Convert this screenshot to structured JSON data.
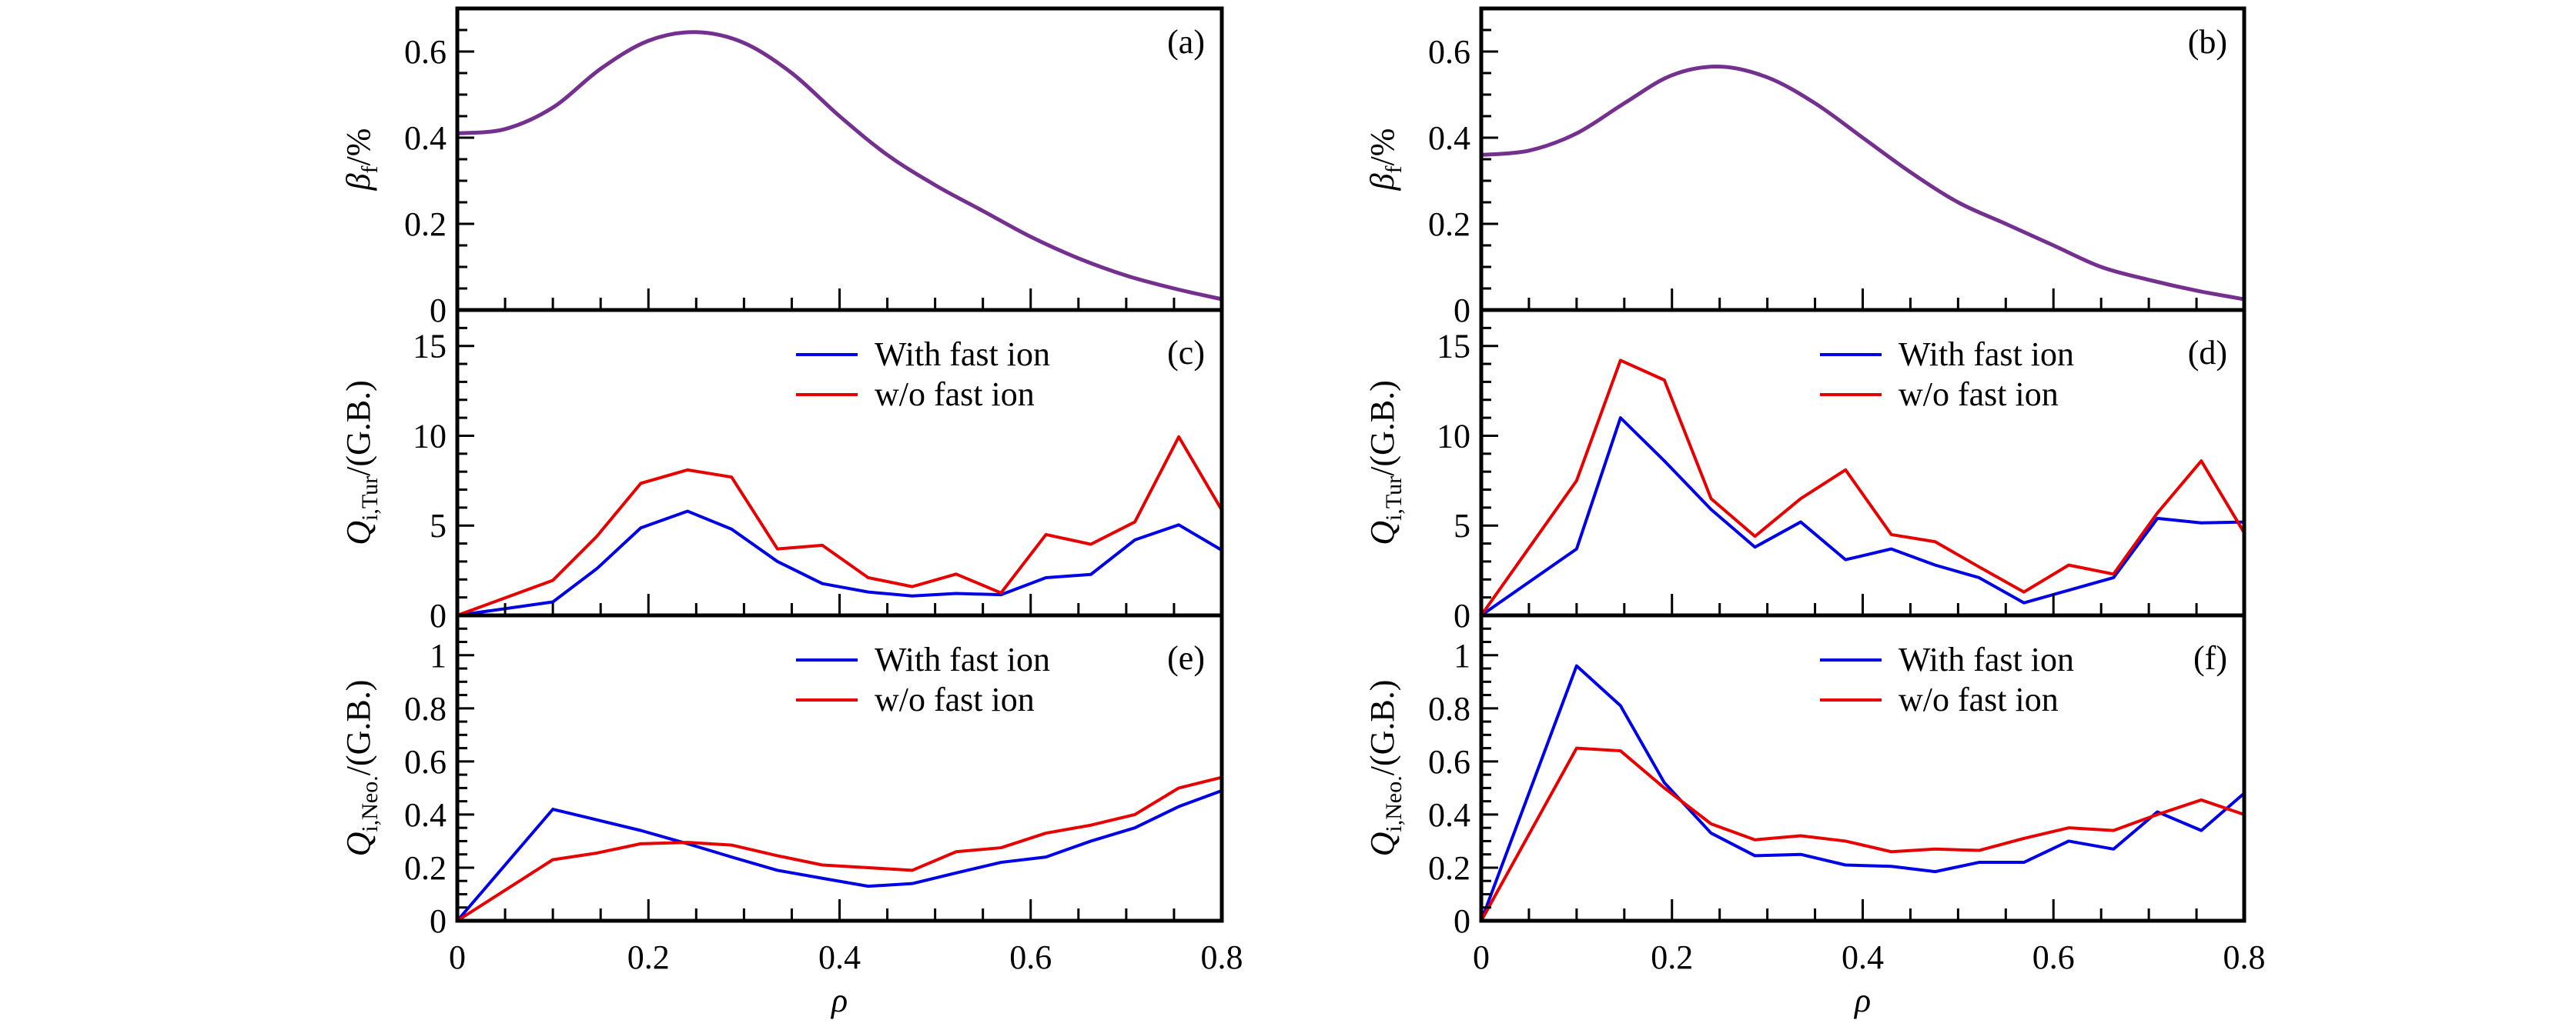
{
  "chart_data": [
    {
      "id": "a",
      "type": "line",
      "panel_label": "(a)",
      "ylabel": {
        "main": "β",
        "sub": "f",
        "tail": "/%"
      },
      "ylim": [
        0,
        0.7
      ],
      "yticks": [
        0,
        0.2,
        0.4,
        0.6
      ],
      "yminor": 0.05,
      "xlim": [
        0,
        0.8
      ],
      "xticks": [
        0,
        0.2,
        0.4,
        0.6,
        0.8
      ],
      "xminor": 0.05,
      "show_xticklabels": false,
      "smooth": true,
      "x": [
        0,
        0.05,
        0.1,
        0.15,
        0.2,
        0.25,
        0.3,
        0.35,
        0.4,
        0.45,
        0.5,
        0.55,
        0.6,
        0.65,
        0.7,
        0.75,
        0.8
      ],
      "series": [
        {
          "name": "",
          "color": "#74308f",
          "values": [
            0.41,
            0.42,
            0.47,
            0.56,
            0.625,
            0.645,
            0.62,
            0.55,
            0.45,
            0.36,
            0.29,
            0.23,
            0.17,
            0.12,
            0.08,
            0.05,
            0.025
          ]
        }
      ],
      "legend": []
    },
    {
      "id": "b",
      "type": "line",
      "panel_label": "(b)",
      "ylabel": {
        "main": "β",
        "sub": "f",
        "tail": "/%"
      },
      "ylim": [
        0,
        0.7
      ],
      "yticks": [
        0,
        0.2,
        0.4,
        0.6
      ],
      "yminor": 0.05,
      "xlim": [
        0,
        0.8
      ],
      "xticks": [
        0,
        0.2,
        0.4,
        0.6,
        0.8
      ],
      "xminor": 0.05,
      "show_xticklabels": false,
      "smooth": true,
      "x": [
        0,
        0.05,
        0.1,
        0.15,
        0.2,
        0.25,
        0.3,
        0.35,
        0.4,
        0.45,
        0.5,
        0.55,
        0.6,
        0.65,
        0.7,
        0.75,
        0.8
      ],
      "series": [
        {
          "name": "",
          "color": "#74308f",
          "values": [
            0.36,
            0.37,
            0.41,
            0.48,
            0.545,
            0.565,
            0.54,
            0.48,
            0.4,
            0.32,
            0.25,
            0.2,
            0.15,
            0.1,
            0.07,
            0.045,
            0.025
          ]
        }
      ],
      "legend": []
    },
    {
      "id": "c",
      "type": "line",
      "panel_label": "(c)",
      "ylabel": {
        "main": "Q",
        "sub": "i,Tur",
        "tail": "/(G.B.)"
      },
      "ylim": [
        0,
        17
      ],
      "yticks": [
        0,
        5,
        10,
        15
      ],
      "yminor": 1,
      "xlim": [
        0,
        0.8
      ],
      "xticks": [
        0,
        0.2,
        0.4,
        0.6,
        0.8
      ],
      "xminor": 0.05,
      "show_xticklabels": false,
      "smooth": false,
      "x": [
        0,
        0.1,
        0.146,
        0.192,
        0.241,
        0.287,
        0.335,
        0.382,
        0.43,
        0.476,
        0.522,
        0.569,
        0.616,
        0.663,
        0.709,
        0.755,
        0.8
      ],
      "series": [
        {
          "name": "With fast ion",
          "color": "#0000e6",
          "values": [
            0,
            0.75,
            2.6,
            4.87,
            5.8,
            4.8,
            3.0,
            1.77,
            1.3,
            1.08,
            1.22,
            1.15,
            2.1,
            2.28,
            4.2,
            5.04,
            3.63
          ]
        },
        {
          "name": "w/o fast ion",
          "color": "#e60000",
          "values": [
            0,
            1.95,
            4.4,
            7.35,
            8.1,
            7.7,
            3.7,
            3.9,
            2.1,
            1.6,
            2.3,
            1.25,
            4.5,
            3.96,
            5.2,
            9.94,
            5.86
          ]
        }
      ],
      "legend": [
        "With fast ion",
        "w/o fast ion"
      ]
    },
    {
      "id": "d",
      "type": "line",
      "panel_label": "(d)",
      "ylabel": {
        "main": "Q",
        "sub": "i,Tur",
        "tail": "/(G.B.)"
      },
      "ylim": [
        0,
        17
      ],
      "yticks": [
        0,
        5,
        10,
        15
      ],
      "yminor": 1,
      "xlim": [
        0,
        0.8
      ],
      "xticks": [
        0,
        0.2,
        0.4,
        0.6,
        0.8
      ],
      "xminor": 0.05,
      "show_xticklabels": false,
      "smooth": false,
      "x": [
        0,
        0.1,
        0.146,
        0.192,
        0.241,
        0.287,
        0.335,
        0.382,
        0.43,
        0.476,
        0.522,
        0.569,
        0.616,
        0.663,
        0.709,
        0.755,
        0.8
      ],
      "series": [
        {
          "name": "With fast ion",
          "color": "#0000e6",
          "values": [
            0,
            3.7,
            11.0,
            8.6,
            5.9,
            3.8,
            5.2,
            3.1,
            3.7,
            2.8,
            2.1,
            0.7,
            1.4,
            2.1,
            5.4,
            5.15,
            5.2
          ]
        },
        {
          "name": "w/o fast ion",
          "color": "#e60000",
          "values": [
            0,
            7.5,
            14.2,
            13.1,
            6.5,
            4.4,
            6.5,
            8.1,
            4.5,
            4.1,
            2.7,
            1.3,
            2.8,
            2.3,
            5.7,
            8.6,
            4.6
          ]
        }
      ],
      "legend": [
        "With fast ion",
        "w/o fast ion"
      ]
    },
    {
      "id": "e",
      "type": "line",
      "panel_label": "(e)",
      "ylabel": {
        "main": "Q",
        "sub": "i,Neo.",
        "tail": "/(G.B.)"
      },
      "ylim": [
        0,
        1.15
      ],
      "yticks": [
        0,
        0.2,
        0.4,
        0.6,
        0.8,
        1.0
      ],
      "yminor": 0.05,
      "xlim": [
        0,
        0.8
      ],
      "xticks": [
        0,
        0.2,
        0.4,
        0.6,
        0.8
      ],
      "xminor": 0.05,
      "show_xticklabels": true,
      "smooth": false,
      "xlabel": "ρ",
      "x": [
        0,
        0.1,
        0.146,
        0.192,
        0.241,
        0.287,
        0.335,
        0.382,
        0.43,
        0.476,
        0.522,
        0.569,
        0.616,
        0.663,
        0.709,
        0.755,
        0.8
      ],
      "series": [
        {
          "name": "With fast ion",
          "color": "#0000e6",
          "values": [
            0,
            0.42,
            0.38,
            0.34,
            0.29,
            0.24,
            0.19,
            0.16,
            0.13,
            0.14,
            0.18,
            0.22,
            0.24,
            0.3,
            0.35,
            0.43,
            0.49
          ]
        },
        {
          "name": "w/o fast ion",
          "color": "#e60000",
          "values": [
            0,
            0.23,
            0.255,
            0.29,
            0.295,
            0.285,
            0.245,
            0.21,
            0.2,
            0.19,
            0.26,
            0.275,
            0.33,
            0.36,
            0.4,
            0.5,
            0.54
          ]
        }
      ],
      "legend": [
        "With fast ion",
        "w/o fast ion"
      ]
    },
    {
      "id": "f",
      "type": "line",
      "panel_label": "(f)",
      "ylabel": {
        "main": "Q",
        "sub": "i,Neo.",
        "tail": "/(G.B.)"
      },
      "ylim": [
        0,
        1.15
      ],
      "yticks": [
        0,
        0.2,
        0.4,
        0.6,
        0.8,
        1.0
      ],
      "yminor": 0.05,
      "xlim": [
        0,
        0.8
      ],
      "xticks": [
        0,
        0.2,
        0.4,
        0.6,
        0.8
      ],
      "xminor": 0.05,
      "show_xticklabels": true,
      "smooth": false,
      "xlabel": "ρ",
      "x": [
        0,
        0.1,
        0.146,
        0.192,
        0.241,
        0.287,
        0.335,
        0.382,
        0.43,
        0.476,
        0.522,
        0.569,
        0.616,
        0.663,
        0.709,
        0.755,
        0.8
      ],
      "series": [
        {
          "name": "With fast ion",
          "color": "#0000e6",
          "values": [
            0,
            0.96,
            0.81,
            0.52,
            0.33,
            0.245,
            0.25,
            0.21,
            0.205,
            0.185,
            0.22,
            0.22,
            0.3,
            0.27,
            0.41,
            0.34,
            0.48
          ]
        },
        {
          "name": "w/o fast ion",
          "color": "#e60000",
          "values": [
            0,
            0.65,
            0.64,
            0.5,
            0.365,
            0.305,
            0.32,
            0.3,
            0.26,
            0.27,
            0.265,
            0.31,
            0.35,
            0.34,
            0.4,
            0.455,
            0.4
          ]
        }
      ],
      "legend": [
        "With fast ion",
        "w/o fast ion"
      ]
    }
  ]
}
